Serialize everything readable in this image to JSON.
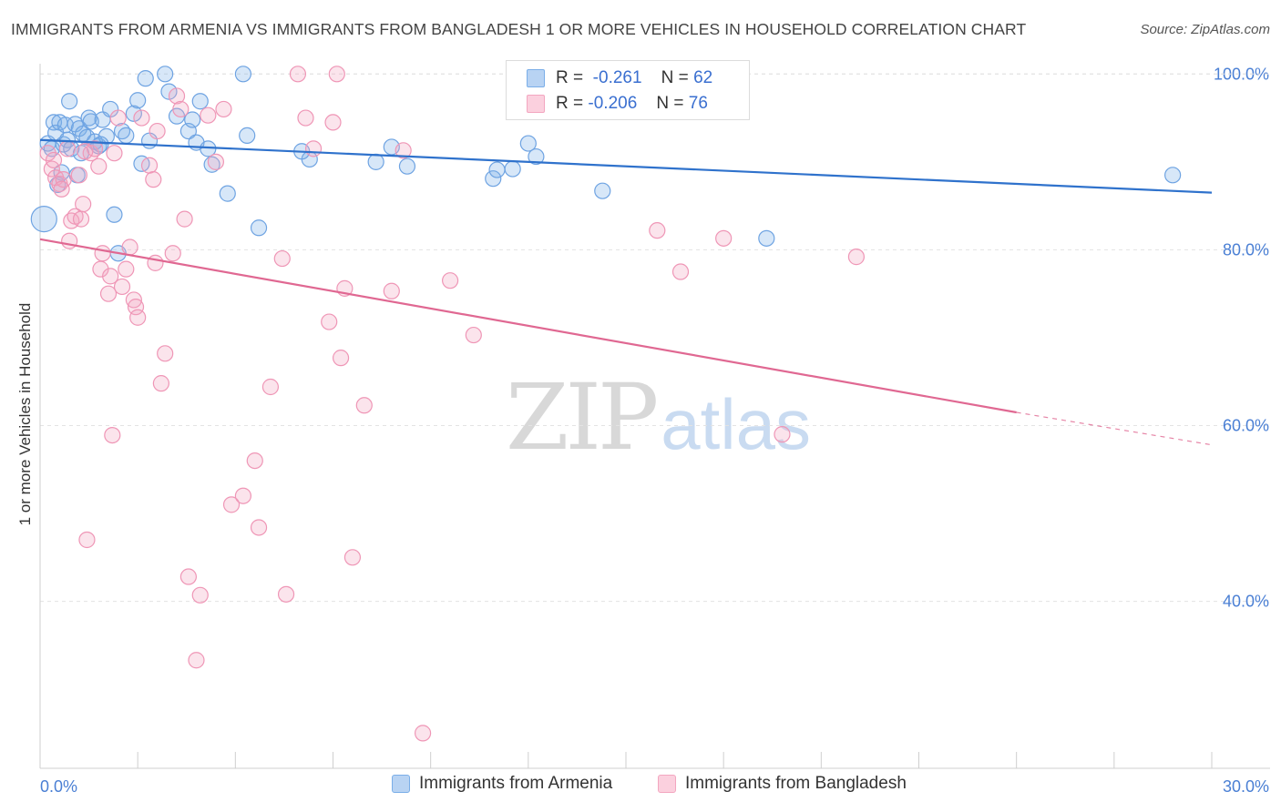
{
  "title": "IMMIGRANTS FROM ARMENIA VS IMMIGRANTS FROM BANGLADESH 1 OR MORE VEHICLES IN HOUSEHOLD CORRELATION CHART",
  "source": "Source: ZipAtlas.com",
  "watermark": {
    "zip": "ZIP",
    "atlas": "atlas"
  },
  "colors": {
    "armenia": "#7aaee8",
    "armenia_line": "#2f72cc",
    "bangladesh": "#f3a6c0",
    "bangladesh_line": "#e06892",
    "axis_text": "#4a7fd4"
  },
  "legend": {
    "rows": [
      {
        "r_label": "R =",
        "r_value": "-0.261",
        "n_label": "N =",
        "n_value": "62"
      },
      {
        "r_label": "R =",
        "r_value": "-0.206",
        "n_label": "N =",
        "n_value": "76"
      }
    ]
  },
  "chart_data": {
    "type": "scatter",
    "title": "IMMIGRANTS FROM ARMENIA VS IMMIGRANTS FROM BANGLADESH 1 OR MORE VEHICLES IN HOUSEHOLD CORRELATION CHART",
    "xlabel": "",
    "ylabel": "1 or more Vehicles in Household",
    "xlim": [
      0,
      30
    ],
    "ylim": [
      21,
      102
    ],
    "x_tick_labels": [
      "0.0%",
      "30.0%"
    ],
    "y_ticks": [
      40,
      60,
      80,
      100
    ],
    "y_tick_labels": [
      "40.0%",
      "60.0%",
      "80.0%",
      "100.0%"
    ],
    "grid": true,
    "legend_position": "top-center",
    "series": [
      {
        "name": "Immigrants from Armenia",
        "color": "#7aaee8",
        "trend": {
          "x0": 0,
          "y0": 92.5,
          "x1": 30,
          "y1": 86.5
        },
        "points": [
          [
            0.2,
            92.1
          ],
          [
            0.3,
            91.5
          ],
          [
            0.35,
            94.5
          ],
          [
            0.4,
            93.3
          ],
          [
            0.5,
            94.5
          ],
          [
            0.55,
            88.8
          ],
          [
            0.6,
            92.0
          ],
          [
            0.65,
            94.2
          ],
          [
            0.7,
            92.5
          ],
          [
            0.75,
            96.9
          ],
          [
            0.8,
            91.5
          ],
          [
            0.9,
            94.3
          ],
          [
            1.0,
            93.8
          ],
          [
            1.05,
            91.0
          ],
          [
            1.1,
            93.2
          ],
          [
            1.2,
            92.8
          ],
          [
            1.25,
            95.0
          ],
          [
            1.3,
            94.6
          ],
          [
            1.4,
            92.3
          ],
          [
            1.5,
            91.8
          ],
          [
            1.6,
            94.8
          ],
          [
            1.7,
            92.9
          ],
          [
            1.8,
            96.0
          ],
          [
            1.9,
            84.0
          ],
          [
            2.0,
            79.6
          ],
          [
            2.1,
            93.5
          ],
          [
            2.2,
            93.0
          ],
          [
            2.4,
            95.5
          ],
          [
            2.5,
            97.0
          ],
          [
            2.6,
            89.8
          ],
          [
            2.7,
            99.5
          ],
          [
            2.8,
            92.4
          ],
          [
            3.2,
            100.0
          ],
          [
            3.3,
            98.0
          ],
          [
            3.5,
            95.2
          ],
          [
            3.8,
            93.5
          ],
          [
            4.0,
            92.2
          ],
          [
            4.1,
            96.9
          ],
          [
            4.3,
            91.5
          ],
          [
            4.4,
            89.7
          ],
          [
            4.8,
            86.4
          ],
          [
            5.2,
            100.0
          ],
          [
            5.3,
            93.0
          ],
          [
            5.6,
            82.5
          ],
          [
            6.9,
            90.3
          ],
          [
            8.6,
            90.0
          ],
          [
            9.0,
            91.7
          ],
          [
            9.4,
            89.5
          ],
          [
            11.6,
            88.1
          ],
          [
            11.7,
            89.1
          ],
          [
            12.1,
            89.2
          ],
          [
            12.5,
            92.1
          ],
          [
            12.7,
            90.6
          ],
          [
            14.4,
            86.7
          ],
          [
            18.6,
            81.3
          ],
          [
            29.0,
            88.5
          ],
          [
            0.1,
            83.5
          ],
          [
            0.45,
            87.4
          ],
          [
            0.95,
            88.5
          ],
          [
            1.55,
            92.0
          ],
          [
            3.9,
            94.8
          ],
          [
            6.7,
            91.2
          ]
        ]
      },
      {
        "name": "Immigrants from Bangladesh",
        "color": "#f3a6c0",
        "trend": {
          "x0": 0,
          "y0": 81.2,
          "x1": 25,
          "y1": 61.5
        },
        "trend_dashed_to": {
          "x": 30,
          "y": 57.8
        },
        "points": [
          [
            0.2,
            91.0
          ],
          [
            0.3,
            89.2
          ],
          [
            0.35,
            90.2
          ],
          [
            0.4,
            88.2
          ],
          [
            0.5,
            87.5
          ],
          [
            0.6,
            88.0
          ],
          [
            0.7,
            91.5
          ],
          [
            0.75,
            81.0
          ],
          [
            0.8,
            83.3
          ],
          [
            0.9,
            83.8
          ],
          [
            1.0,
            88.5
          ],
          [
            1.05,
            83.5
          ],
          [
            1.1,
            85.2
          ],
          [
            1.2,
            47.0
          ],
          [
            1.3,
            91.0
          ],
          [
            1.4,
            91.5
          ],
          [
            1.5,
            89.5
          ],
          [
            1.55,
            77.8
          ],
          [
            1.6,
            79.6
          ],
          [
            1.75,
            75.0
          ],
          [
            1.8,
            77.0
          ],
          [
            1.85,
            58.9
          ],
          [
            1.9,
            91.0
          ],
          [
            2.0,
            95.0
          ],
          [
            2.1,
            75.8
          ],
          [
            2.2,
            77.8
          ],
          [
            2.3,
            80.3
          ],
          [
            2.4,
            74.3
          ],
          [
            2.45,
            73.5
          ],
          [
            2.5,
            72.3
          ],
          [
            2.6,
            95.0
          ],
          [
            2.8,
            89.6
          ],
          [
            2.9,
            88.0
          ],
          [
            2.95,
            78.5
          ],
          [
            3.0,
            93.5
          ],
          [
            3.2,
            68.2
          ],
          [
            3.1,
            64.8
          ],
          [
            3.4,
            79.6
          ],
          [
            3.5,
            97.5
          ],
          [
            3.6,
            96.0
          ],
          [
            3.7,
            83.5
          ],
          [
            3.8,
            42.8
          ],
          [
            4.0,
            33.3
          ],
          [
            4.1,
            40.7
          ],
          [
            4.3,
            95.3
          ],
          [
            4.5,
            90.0
          ],
          [
            4.7,
            96.0
          ],
          [
            4.9,
            51.0
          ],
          [
            5.2,
            52.0
          ],
          [
            5.5,
            56.0
          ],
          [
            5.6,
            48.4
          ],
          [
            5.9,
            64.4
          ],
          [
            6.2,
            79.0
          ],
          [
            6.3,
            40.8
          ],
          [
            6.6,
            100.0
          ],
          [
            6.8,
            95.0
          ],
          [
            7.0,
            91.5
          ],
          [
            7.4,
            71.8
          ],
          [
            7.5,
            94.5
          ],
          [
            7.6,
            100.0
          ],
          [
            7.7,
            67.7
          ],
          [
            7.8,
            75.6
          ],
          [
            8.0,
            45.0
          ],
          [
            8.3,
            62.3
          ],
          [
            9.0,
            75.3
          ],
          [
            9.3,
            91.3
          ],
          [
            9.8,
            25.0
          ],
          [
            10.5,
            76.5
          ],
          [
            11.1,
            70.3
          ],
          [
            15.8,
            82.2
          ],
          [
            16.4,
            77.5
          ],
          [
            17.5,
            81.3
          ],
          [
            19.0,
            59.0
          ],
          [
            20.9,
            79.2
          ],
          [
            0.55,
            86.9
          ],
          [
            1.15,
            91.2
          ]
        ]
      }
    ]
  },
  "bottom_legend": {
    "armenia": "Immigrants from Armenia",
    "bangladesh": "Immigrants from Bangladesh"
  },
  "axes": {
    "x_left": "0.0%",
    "x_right": "30.0%",
    "ylabel": "1 or more Vehicles in Household"
  }
}
